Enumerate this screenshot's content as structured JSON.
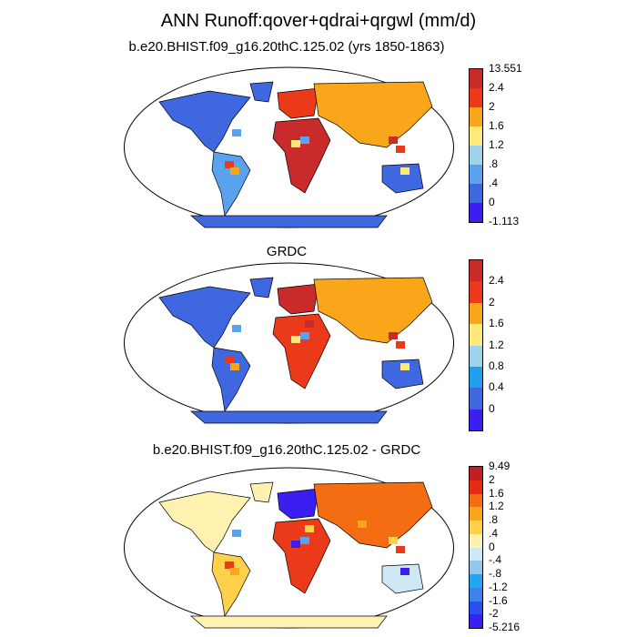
{
  "title": "ANN Runoff:qover+qdrai+qrgwl (mm/d)",
  "panels": [
    {
      "title": "b.e20.BHIST.f09_g16.20thC.125.02 (yrs 1850-1863)",
      "colorbar": {
        "colors": [
          "#3a1ff0",
          "#3f67e0",
          "#5aa2ee",
          "#9fd2ee",
          "#ffe97a",
          "#f9a61a",
          "#ea3a1a",
          "#c92a2a"
        ],
        "labels": [
          "-1.113",
          "0",
          ".4",
          ".8",
          "1.2",
          "1.6",
          "2",
          "2.4",
          "13.551"
        ]
      }
    },
    {
      "title": "GRDC",
      "colorbar": {
        "colors": [
          "#3a1ff0",
          "#3f67e0",
          "#1fa0ef",
          "#9fd2ee",
          "#ffe97a",
          "#f9a61a",
          "#ea3a1a",
          "#c92a2a"
        ],
        "labels": [
          "",
          "0",
          "0.4",
          "0.8",
          "1.2",
          "1.6",
          "2",
          "2.4",
          ""
        ]
      }
    },
    {
      "title": "b.e20.BHIST.f09_g16.20thC.125.02 - GRDC",
      "colorbar": {
        "colors": [
          "#3a1ff0",
          "#2b4ef0",
          "#3c82ee",
          "#1fa7ef",
          "#92c8ec",
          "#cfe9f4",
          "#fff2b0",
          "#ffd04a",
          "#f9a61a",
          "#f56d12",
          "#e52b12",
          "#c22020"
        ],
        "labels": [
          "-5.216",
          "-2",
          "-1.6",
          "-1.2",
          "-.8",
          "-.4",
          "0",
          ".4",
          ".8",
          "1.2",
          "1.6",
          "2",
          "9.49"
        ]
      }
    }
  ]
}
